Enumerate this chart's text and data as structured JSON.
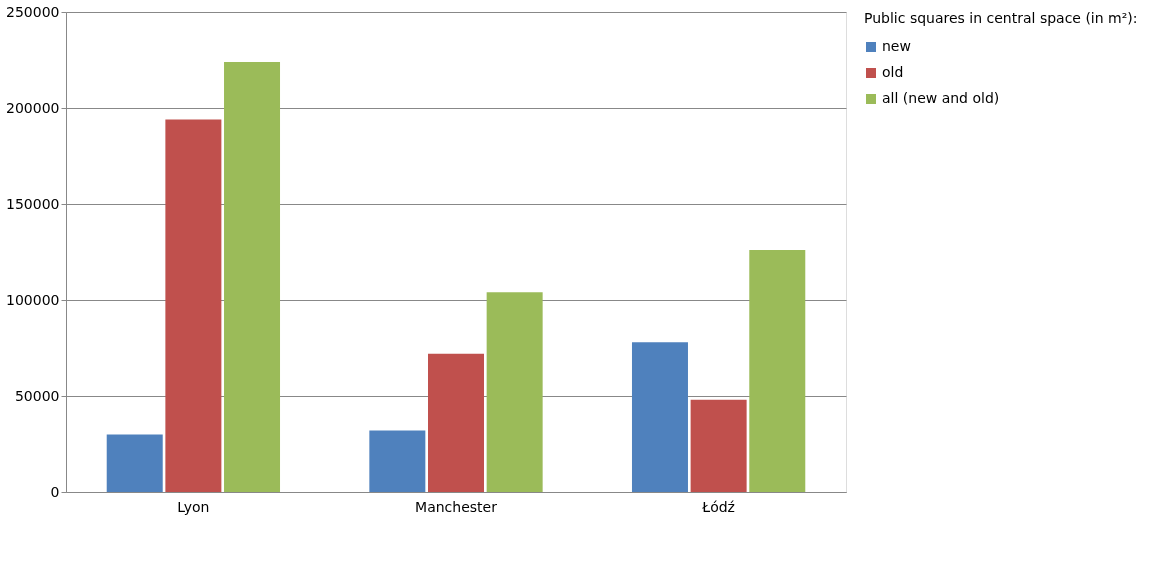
{
  "chart_data": {
    "type": "bar",
    "legend_title": "Public squares in central space (in m²):",
    "categories": [
      "Lyon",
      "Manchester",
      "Łódź"
    ],
    "series": [
      {
        "name": "new",
        "color": "#4f81bd",
        "values": [
          30000,
          32000,
          78000
        ]
      },
      {
        "name": "old",
        "color": "#c0504d",
        "values": [
          194000,
          72000,
          48000
        ]
      },
      {
        "name": "all (new and old)",
        "color": "#9bbb59",
        "values": [
          224000,
          104000,
          126000
        ]
      }
    ],
    "ylim": [
      0,
      250000
    ],
    "yticks": [
      0,
      50000,
      100000,
      150000,
      200000,
      250000
    ],
    "grid": "y",
    "legend": "right"
  }
}
